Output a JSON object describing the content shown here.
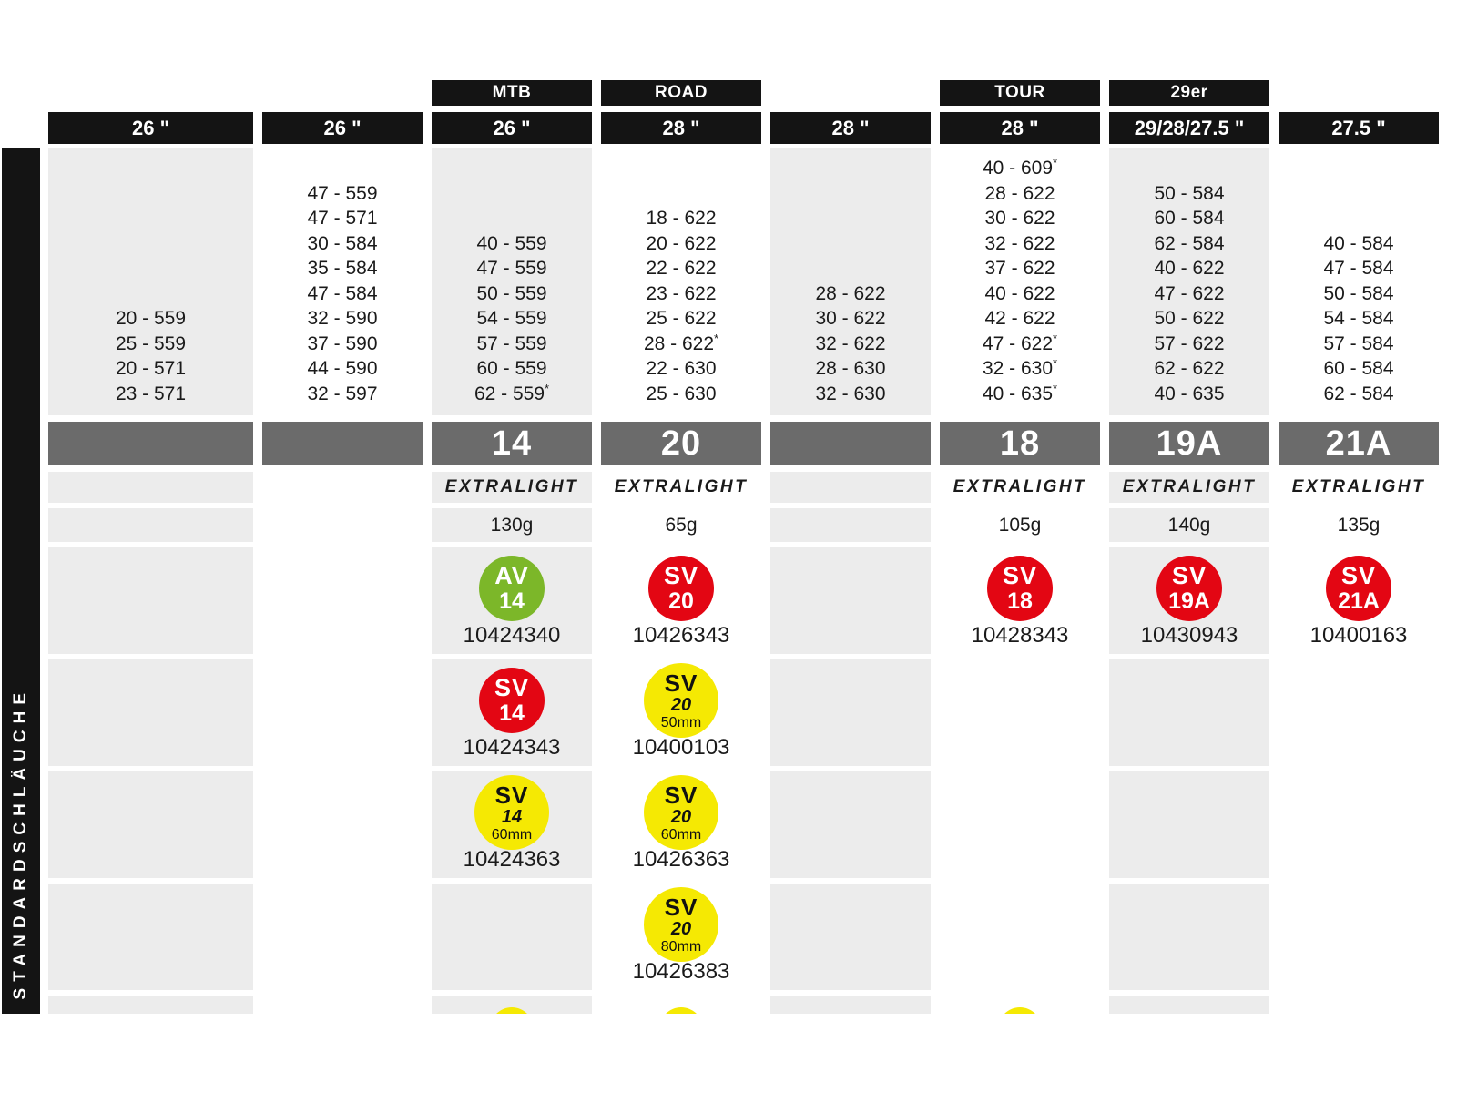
{
  "sidebar": {
    "label": "STANDARDSCHLÄUCHE"
  },
  "colors": {
    "header_bg": "#141414",
    "header_text": "#ffffff",
    "band_bg": "#6b6b6b",
    "cell_gray": "#ececec",
    "cell_white": "#ffffff",
    "valve_green": "#7cb729",
    "valve_red": "#e30613",
    "valve_yellow": "#f5e903"
  },
  "columns": [
    {
      "category": "",
      "size_label": "26 \"",
      "shade": "gray",
      "sizes": [
        "20 - 559",
        "25 - 559",
        "20 - 571",
        "23 - 571"
      ],
      "tube_number": "",
      "extralight": "",
      "weight": "",
      "badges": [
        null,
        null,
        null,
        null
      ],
      "cut_badge": false
    },
    {
      "category": "",
      "size_label": "26 \"",
      "shade": "white",
      "sizes": [
        "47 - 559",
        "47 - 571",
        "30 - 584",
        "35 - 584",
        "47 - 584",
        "32 - 590",
        "37 - 590",
        "44 - 590",
        "32 - 597"
      ],
      "tube_number": "",
      "extralight": "",
      "weight": "",
      "badges": [
        null,
        null,
        null,
        null
      ],
      "cut_badge": false
    },
    {
      "category": "MTB",
      "size_label": "26 \"",
      "shade": "gray",
      "sizes": [
        "40 - 559",
        "47 - 559",
        "50 - 559",
        "54 - 559",
        "57 - 559",
        "60 - 559",
        "62 - 559*"
      ],
      "tube_number": "14",
      "extralight": "EXTRALIGHT",
      "weight": "130g",
      "badges": [
        {
          "valve": "AV",
          "num": "14",
          "len": "",
          "color": "green",
          "code": "10424340"
        },
        {
          "valve": "SV",
          "num": "14",
          "len": "",
          "color": "red",
          "code": "10424343"
        },
        {
          "valve": "SV",
          "num": "14",
          "len": "60mm",
          "color": "yellow",
          "code": "10424363"
        },
        null
      ],
      "cut_badge": true
    },
    {
      "category": "ROAD",
      "size_label": "28 \"",
      "shade": "white",
      "sizes": [
        "18 - 622",
        "20 - 622",
        "22 - 622",
        "23 - 622",
        "25 - 622",
        "28 - 622*",
        "22 - 630",
        "25 - 630"
      ],
      "tube_number": "20",
      "extralight": "EXTRALIGHT",
      "weight": "65g",
      "badges": [
        {
          "valve": "SV",
          "num": "20",
          "len": "",
          "color": "red",
          "code": "10426343"
        },
        {
          "valve": "SV",
          "num": "20",
          "len": "50mm",
          "color": "yellow",
          "code": "10400103"
        },
        {
          "valve": "SV",
          "num": "20",
          "len": "60mm",
          "color": "yellow",
          "code": "10426363"
        },
        {
          "valve": "SV",
          "num": "20",
          "len": "80mm",
          "color": "yellow",
          "code": "10426383"
        }
      ],
      "cut_badge": true
    },
    {
      "category": "",
      "size_label": "28 \"",
      "shade": "gray",
      "sizes": [
        "28 - 622",
        "30 - 622",
        "32 - 622",
        "28 - 630",
        "32 - 630"
      ],
      "tube_number": "",
      "extralight": "",
      "weight": "",
      "badges": [
        null,
        null,
        null,
        null
      ],
      "cut_badge": false
    },
    {
      "category": "TOUR",
      "size_label": "28 \"",
      "shade": "white",
      "sizes": [
        "40 - 609*",
        "28 - 622",
        "30 - 622",
        "32 - 622",
        "37 - 622",
        "40 - 622",
        "42 - 622",
        "47 - 622*",
        "32 - 630*",
        "40 - 635*"
      ],
      "tube_number": "18",
      "extralight": "EXTRALIGHT",
      "weight": "105g",
      "badges": [
        {
          "valve": "SV",
          "num": "18",
          "len": "",
          "color": "red",
          "code": "10428343"
        },
        null,
        null,
        null
      ],
      "cut_badge": true
    },
    {
      "category": "29er",
      "size_label": "29/28/27.5 \"",
      "shade": "gray",
      "sizes": [
        "50 - 584",
        "60 - 584",
        "62 - 584",
        "40 - 622",
        "47 - 622",
        "50 - 622",
        "57 - 622",
        "62 - 622",
        "40 - 635"
      ],
      "tube_number": "19A",
      "extralight": "EXTRALIGHT",
      "weight": "140g",
      "badges": [
        {
          "valve": "SV",
          "num": "19A",
          "len": "",
          "color": "red",
          "code": "10430943"
        },
        null,
        null,
        null
      ],
      "cut_badge": false
    },
    {
      "category": "",
      "size_label": "27.5 \"",
      "shade": "white",
      "sizes": [
        "40 - 584",
        "47 - 584",
        "50 - 584",
        "54 - 584",
        "57 - 584",
        "60 - 584",
        "62 - 584"
      ],
      "tube_number": "21A",
      "extralight": "EXTRALIGHT",
      "weight": "135g",
      "badges": [
        {
          "valve": "SV",
          "num": "21A",
          "len": "",
          "color": "red",
          "code": "10400163"
        },
        null,
        null,
        null
      ],
      "cut_badge": false
    }
  ]
}
